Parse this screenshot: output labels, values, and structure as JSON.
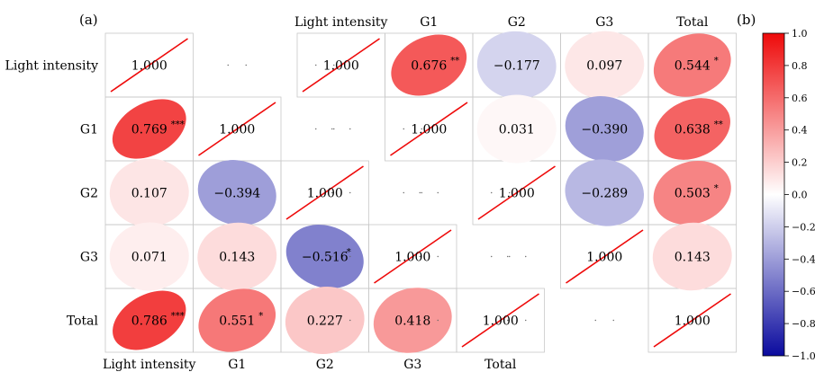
{
  "panel_labels": {
    "a": "(a)",
    "b": "(b)"
  },
  "variables": [
    "Light intensity",
    "G1",
    "G2",
    "G3",
    "Total"
  ],
  "chart_data": [
    {
      "type": "heatmap",
      "title": "",
      "variables": [
        "Light intensity",
        "G1",
        "G2",
        "G3",
        "Total"
      ],
      "matrix": [
        [
          1.0,
          null,
          null,
          null,
          null
        ],
        [
          0.769,
          1.0,
          null,
          null,
          null
        ],
        [
          0.107,
          -0.394,
          1.0,
          null,
          null
        ],
        [
          0.071,
          0.143,
          -0.516,
          1.0,
          null
        ],
        [
          0.786,
          0.551,
          0.227,
          0.418,
          1.0
        ]
      ],
      "significance": [
        [
          "",
          "",
          "",
          "",
          ""
        ],
        [
          "***",
          "",
          "",
          "",
          ""
        ],
        [
          "",
          "",
          "",
          "",
          ""
        ],
        [
          "",
          "",
          "*",
          "",
          ""
        ],
        [
          "***",
          "*",
          "",
          "",
          ""
        ]
      ],
      "shape": "ellipse, diagonal shown as line",
      "triangle": "lower"
    },
    {
      "type": "heatmap",
      "title": "",
      "variables": [
        "Light intensity",
        "G1",
        "G2",
        "G3",
        "Total"
      ],
      "matrix": [
        [
          1.0,
          0.676,
          -0.177,
          0.097,
          0.544
        ],
        [
          null,
          1.0,
          0.031,
          -0.39,
          0.638
        ],
        [
          null,
          null,
          1.0,
          -0.289,
          0.503
        ],
        [
          null,
          null,
          null,
          1.0,
          0.143
        ],
        [
          null,
          null,
          null,
          null,
          1.0
        ]
      ],
      "significance": [
        [
          "",
          "**",
          "",
          "",
          "*"
        ],
        [
          "",
          "",
          "",
          "",
          "**"
        ],
        [
          "",
          "",
          "",
          "",
          "*"
        ],
        [
          "",
          "",
          "",
          "",
          ""
        ],
        [
          "",
          "",
          "",
          "",
          ""
        ]
      ],
      "shape": "ellipse, diagonal shown as line",
      "triangle": "upper"
    }
  ],
  "colorbar": {
    "range": [
      -1.0,
      1.0
    ],
    "ticks": [
      "1.0",
      "0.8",
      "0.6",
      "0.4",
      "0.2",
      "0.0",
      "−0.2",
      "−0.4",
      "−0.6",
      "−0.8",
      "−1.0"
    ],
    "colors": {
      "low": "#0a0a9e",
      "mid": "#ffffff",
      "high": "#ee0a0a"
    }
  }
}
